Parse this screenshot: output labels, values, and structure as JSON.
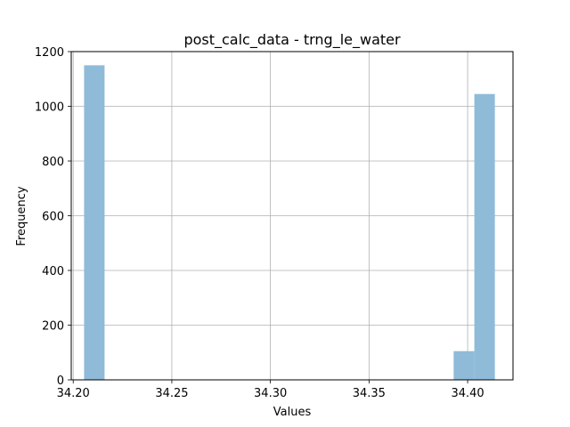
{
  "chart_data": {
    "type": "bar",
    "title": "post_calc_data - trng_le_water",
    "xlabel": "Values",
    "ylabel": "Frequency",
    "xlim": [
      34.199,
      34.423
    ],
    "ylim": [
      0,
      1200
    ],
    "xticks": [
      "34.20",
      "34.25",
      "34.30",
      "34.35",
      "34.40"
    ],
    "yticks": [
      "0",
      "200",
      "400",
      "600",
      "800",
      "1000",
      "1200"
    ],
    "grid": true,
    "bar_color": "#8fbbd9",
    "bins": [
      {
        "x0": 34.2055,
        "x1": 34.2159,
        "value": 1150
      },
      {
        "x0": 34.3929,
        "x1": 34.4034,
        "value": 105
      },
      {
        "x0": 34.4034,
        "x1": 34.4138,
        "value": 1045
      }
    ]
  }
}
